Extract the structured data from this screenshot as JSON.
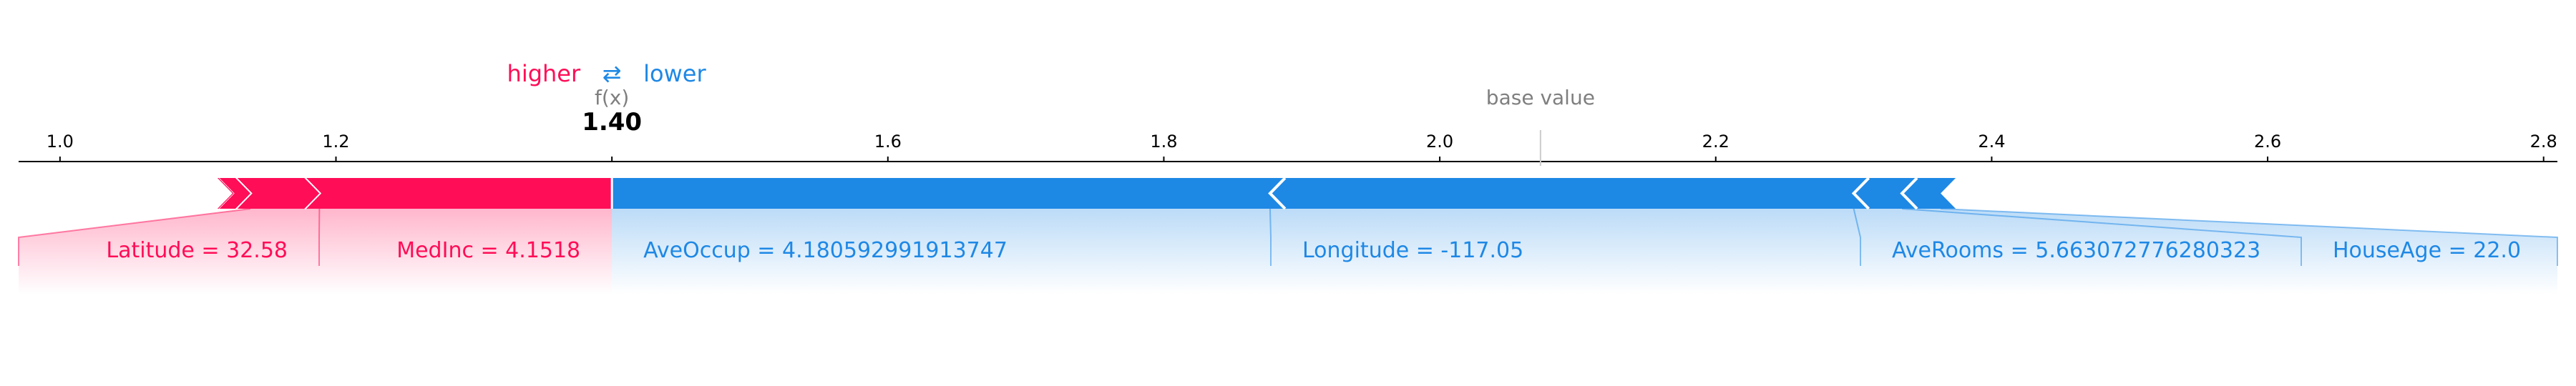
{
  "colors": {
    "positive": "#ff0d57",
    "negative": "#1e88e5",
    "positive_light": "#ffc3d5",
    "negative_light": "#d1e6fa",
    "axis": "#000000",
    "base_line": "#cccccc",
    "muted_text": "#7f7f7f"
  },
  "legend": {
    "higher": "higher",
    "arrow": "⇄",
    "lower": "lower"
  },
  "chart_data": {
    "type": "force",
    "title": "",
    "xlabel": "",
    "ylabel": "",
    "xlim": [
      0.97,
      2.81
    ],
    "ticks": [
      {
        "value": 1.0,
        "label": "1.0"
      },
      {
        "value": 1.2,
        "label": "1.2"
      },
      {
        "value": 1.6,
        "label": "1.6"
      },
      {
        "value": 1.8,
        "label": "1.8"
      },
      {
        "value": 2.0,
        "label": "2.0"
      },
      {
        "value": 2.2,
        "label": "2.2"
      },
      {
        "value": 2.4,
        "label": "2.4"
      },
      {
        "value": 2.6,
        "label": "2.6"
      },
      {
        "value": 2.8,
        "label": "2.8"
      }
    ],
    "output_label": "f(x)",
    "output_value": 1.4,
    "output_value_label": "1.40",
    "base_value": 2.073,
    "base_value_label": "base value",
    "positive_features": [
      {
        "label": "MedInc = 4.1518",
        "start": 1.188,
        "end": 1.4
      },
      {
        "label": "Latitude = 32.58",
        "start": 1.138,
        "end": 1.188
      },
      {
        "label": "",
        "start": 1.125,
        "end": 1.138
      },
      {
        "label": "",
        "start": 1.115,
        "end": 1.125
      }
    ],
    "negative_features": [
      {
        "label": "AveOccup = 4.180592991913747",
        "start": 1.4,
        "end": 1.877
      },
      {
        "label": "Longitude = -117.05",
        "start": 1.877,
        "end": 2.3
      },
      {
        "label": "AveRooms = 5.663072776280323",
        "start": 2.3,
        "end": 2.335
      },
      {
        "label": "HouseAge = 22.0",
        "start": 2.335,
        "end": 2.363
      }
    ]
  }
}
